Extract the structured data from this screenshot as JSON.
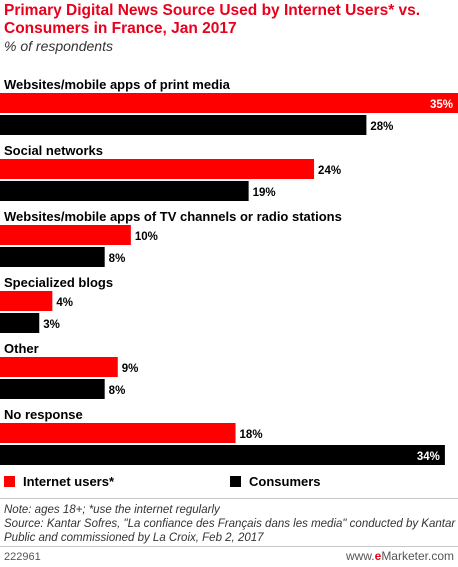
{
  "header": {
    "title": "Primary Digital News Source Used by Internet Users* vs. Consumers in France, Jan 2017",
    "subtitle": "% of respondents"
  },
  "chart_data": {
    "type": "bar",
    "orientation": "horizontal",
    "title": "Primary Digital News Source Used by Internet Users* vs. Consumers in France, Jan 2017",
    "subtitle": "% of respondents",
    "categories": [
      "Websites/mobile apps of print media",
      "Social networks",
      "Websites/mobile apps of TV channels or radio stations",
      "Specialized blogs",
      "Other",
      "No response"
    ],
    "series": [
      {
        "name": "Internet users*",
        "color": "#ff0000",
        "values": [
          35,
          24,
          10,
          4,
          9,
          18
        ]
      },
      {
        "name": "Consumers",
        "color": "#000000",
        "values": [
          28,
          19,
          8,
          3,
          8,
          34
        ]
      }
    ],
    "value_suffix": "%",
    "xlim": [
      0,
      35
    ],
    "grid": false,
    "legend_position": "bottom-left"
  },
  "legend": {
    "items": [
      {
        "label": "Internet users*",
        "color": "#ff0000"
      },
      {
        "label": "Consumers",
        "color": "#000000"
      }
    ]
  },
  "footer": {
    "note": "Note: ages 18+; *use the internet regularly",
    "source": "Source: Kantar Sofres, \"La confiance des Français dans les media\" conducted by Kantar Public and commissioned by La Croix, Feb 2, 2017",
    "chart_id": "222961",
    "brand_prefix": "www.",
    "brand_e": "e",
    "brand_suffix": "Marketer.com"
  }
}
